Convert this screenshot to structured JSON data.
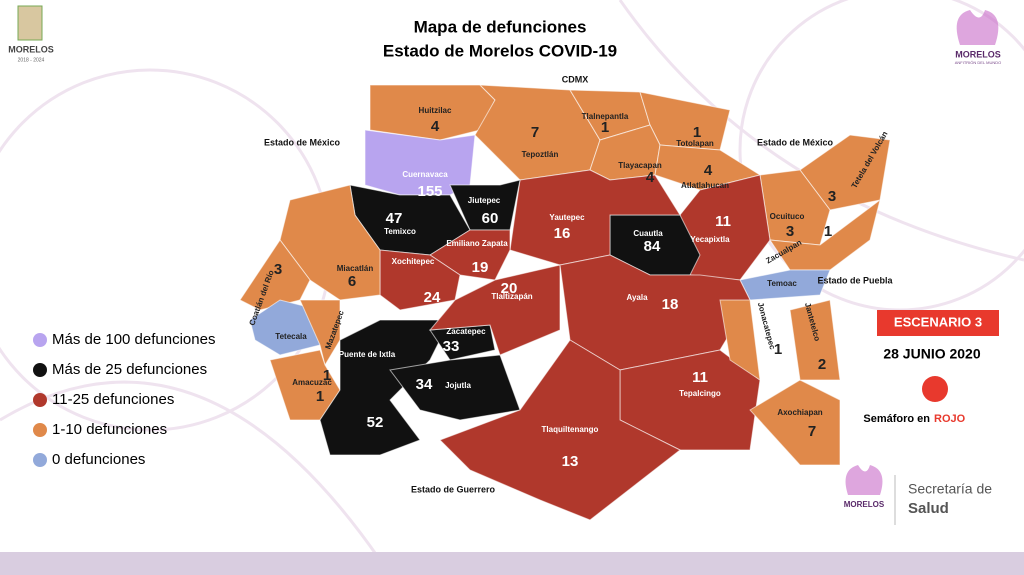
{
  "header": {
    "title_lines": [
      "Mapa de defunciones",
      "Estado de Morelos COVID-19"
    ]
  },
  "logos": {
    "left": {
      "name": "MORELOS",
      "years": "2018 - 2024"
    },
    "right": {
      "name": "MORELOS",
      "tagline": "ANFITRIÓN DEL MUNDO"
    },
    "bottom": {
      "name": "MORELOS",
      "department_line1": "Secretaría de",
      "department_line2": "Salud"
    }
  },
  "neighbors": [
    "CDMX",
    "Estado de México",
    "Estado de México",
    "Estado de Puebla",
    "Estado de Guerrero"
  ],
  "legend": [
    {
      "label": "Más de 100 defunciones",
      "color": "#b8a4ef"
    },
    {
      "label": "Más de 25 defunciones",
      "color": "#111111"
    },
    {
      "label": "11-25 defunciones",
      "color": "#b0382c"
    },
    {
      "label": "1-10 defunciones",
      "color": "#e0894a"
    },
    {
      "label": "0 defunciones",
      "color": "#92a9da"
    }
  ],
  "municipalities": [
    {
      "name": "Huitzilac",
      "deaths": 4,
      "color": "#e0894a"
    },
    {
      "name": "Cuernavaca",
      "deaths": 155,
      "color": "#b8a4ef"
    },
    {
      "name": "Tepoztlán",
      "deaths": 7,
      "color": "#e0894a"
    },
    {
      "name": "Tlalnepantla",
      "deaths": 1,
      "color": "#e0894a"
    },
    {
      "name": "Totolapan",
      "deaths": 1,
      "color": "#e0894a"
    },
    {
      "name": "Tlayacapan",
      "deaths": 4,
      "color": "#e0894a"
    },
    {
      "name": "Atlatlahucan",
      "deaths": 4,
      "color": "#e0894a"
    },
    {
      "name": "Tetela del Volcán",
      "deaths": 3,
      "color": "#e0894a"
    },
    {
      "name": "Ocuituco",
      "deaths": 3,
      "color": "#e0894a"
    },
    {
      "name": "Yecapixtla",
      "deaths": 11,
      "color": "#b0382c"
    },
    {
      "name": "Zacualpan",
      "deaths": 1,
      "color": "#e0894a"
    },
    {
      "name": "Temoac",
      "color": "#92a9da"
    },
    {
      "name": "Cuautla",
      "deaths": 84,
      "color": "#111111"
    },
    {
      "name": "Yautepec",
      "deaths": 16,
      "color": "#b0382c"
    },
    {
      "name": "Jiutepec",
      "deaths": 60,
      "color": "#111111"
    },
    {
      "name": "Temixco",
      "deaths": 47,
      "color": "#111111"
    },
    {
      "name": "Emiliano Zapata",
      "deaths": 19,
      "color": "#b0382c"
    },
    {
      "name": "Xochitepec",
      "deaths": 24,
      "color": "#b0382c"
    },
    {
      "name": "Miacatlán",
      "deaths": 6,
      "color": "#e0894a"
    },
    {
      "name": "Coatlán del Río",
      "deaths": 3,
      "color": "#e0894a"
    },
    {
      "name": "Tetecala",
      "color": "#92a9da"
    },
    {
      "name": "Mazatepec",
      "deaths": 1,
      "color": "#e0894a"
    },
    {
      "name": "Amacuzac",
      "deaths": 1,
      "color": "#e0894a"
    },
    {
      "name": "Puente de Ixtla",
      "deaths": 52,
      "color": "#111111"
    },
    {
      "name": "Zacatepec",
      "deaths": 33,
      "color": "#111111"
    },
    {
      "name": "Jojutla",
      "deaths": 34,
      "color": "#111111"
    },
    {
      "name": "Tlaltizapán",
      "deaths": 20,
      "color": "#b0382c"
    },
    {
      "name": "Ayala",
      "deaths": 18,
      "color": "#b0382c"
    },
    {
      "name": "Tepalcingo",
      "deaths": 11,
      "color": "#b0382c"
    },
    {
      "name": "Tlaquiltenango",
      "deaths": 13,
      "color": "#b0382c"
    },
    {
      "name": "Axochiapan",
      "deaths": 7,
      "color": "#e0894a"
    },
    {
      "name": "Jonacatepec",
      "deaths": 1,
      "color": "#e0894a"
    },
    {
      "name": "Jantetelco",
      "deaths": 2,
      "color": "#e0894a"
    }
  ],
  "status": {
    "scenario": "ESCENARIO 3",
    "date": "28 JUNIO 2020",
    "light_text": "Semáforo en",
    "light_word": "ROJO",
    "light_color": "#e8392d"
  }
}
